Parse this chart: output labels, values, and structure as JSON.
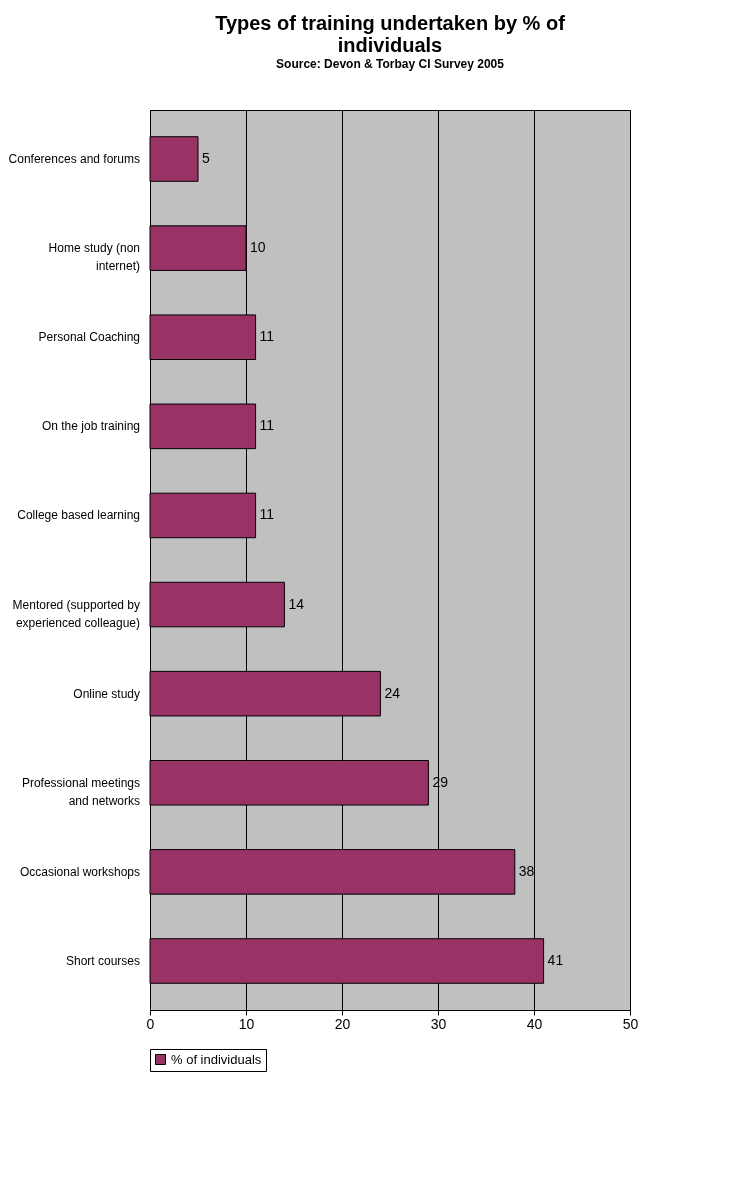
{
  "chart_data": {
    "type": "bar",
    "orientation": "horizontal",
    "title": "Types of training undertaken by % of individuals",
    "subtitle": "Source: Devon & Torbay CI Survey 2005",
    "categories": [
      "Conferences and forums",
      "Home study (non internet)",
      "Personal Coaching",
      "On the job training",
      "College based learning",
      "Mentored (supported by experienced colleague)",
      "Online study",
      "Professional meetings and networks",
      "Occasional workshops",
      "Short courses"
    ],
    "series": [
      {
        "name": "% of individuals",
        "color": "#993366",
        "values": [
          5,
          10,
          11,
          11,
          11,
          14,
          24,
          29,
          38,
          41
        ]
      }
    ],
    "xlim": [
      0,
      50
    ],
    "xticks": [
      0,
      10,
      20,
      30,
      40,
      50
    ],
    "grid": "x",
    "legend": "bottom",
    "data_labels": true
  }
}
